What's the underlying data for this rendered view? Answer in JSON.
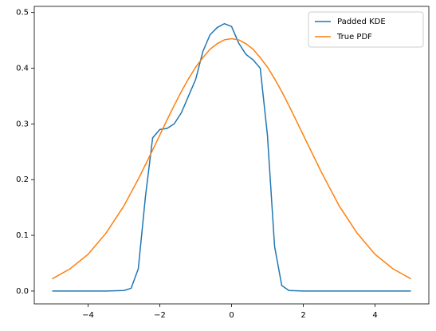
{
  "chart_data": {
    "type": "line",
    "x": [
      -5,
      -4.5,
      -4,
      -3.5,
      -3,
      -2.8,
      -2.6,
      -2.4,
      -2.2,
      -2,
      -1.8,
      -1.6,
      -1.4,
      -1.2,
      -1,
      -0.8,
      -0.6,
      -0.4,
      -0.2,
      0,
      0.2,
      0.4,
      0.6,
      0.8,
      1,
      1.2,
      1.4,
      1.6,
      2,
      2.5,
      3,
      3.5,
      4,
      4.5,
      5
    ],
    "series": [
      {
        "name": "Padded KDE",
        "color": "#1f77b4",
        "values": [
          0,
          0,
          0,
          0,
          0.001,
          0.005,
          0.04,
          0.17,
          0.275,
          0.29,
          0.292,
          0.3,
          0.32,
          0.35,
          0.38,
          0.43,
          0.46,
          0.473,
          0.48,
          0.475,
          0.445,
          0.425,
          0.415,
          0.4,
          0.28,
          0.08,
          0.01,
          0.001,
          0,
          0,
          0,
          0,
          0,
          0,
          0
        ]
      },
      {
        "name": "True PDF",
        "color": "#ff7f0e",
        "values": [
          0.022,
          0.04,
          0.066,
          0.104,
          0.153,
          0.177,
          0.201,
          0.227,
          0.253,
          0.28,
          0.307,
          0.333,
          0.358,
          0.381,
          0.402,
          0.419,
          0.434,
          0.444,
          0.451,
          0.453,
          0.451,
          0.444,
          0.434,
          0.419,
          0.402,
          0.381,
          0.358,
          0.333,
          0.28,
          0.214,
          0.153,
          0.104,
          0.066,
          0.04,
          0.022
        ]
      }
    ],
    "xlim": [
      -5.5,
      5.5
    ],
    "ylim": [
      -0.023,
      0.511
    ],
    "xticks": [
      {
        "value": -4,
        "label": "−4"
      },
      {
        "value": -2,
        "label": "−2"
      },
      0,
      2,
      4
    ],
    "yticks": [
      {
        "value": 0,
        "label": "0.0"
      },
      0.1,
      0.2,
      0.3,
      0.4,
      0.5
    ],
    "legend": "upper right"
  }
}
